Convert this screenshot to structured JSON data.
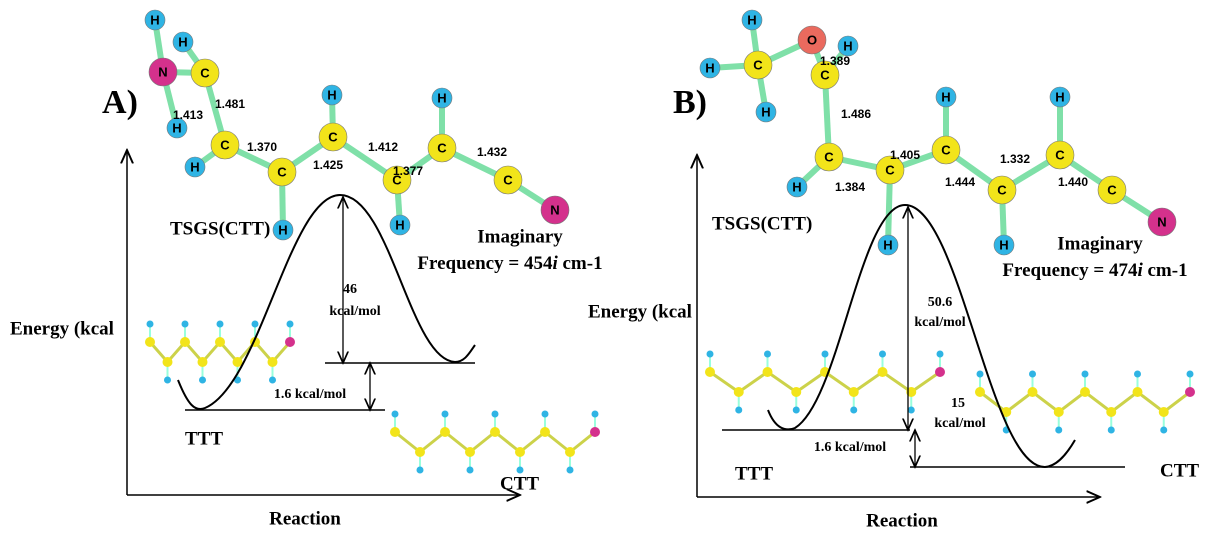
{
  "panels": [
    {
      "label": "A)",
      "y_axis": "Energy (kcal",
      "x_axis": "Reaction",
      "ts_label": "TSGS(CTT)",
      "imaginary": "Imaginary",
      "frequency": {
        "prefix": "Frequency = 454",
        "italic": "i",
        "suffix": " cm-1"
      },
      "barrier": [
        "46",
        "kcal/mol"
      ],
      "reaction_energy": "1.6 kcal/mol",
      "extra": [],
      "reactant": "TTT",
      "product": "CTT",
      "atoms": [
        "H",
        "H",
        "N",
        "C",
        "H",
        "C",
        "H",
        "C",
        "H",
        "C",
        "H",
        "C",
        "H",
        "C",
        "H",
        "C",
        "N"
      ],
      "bond_lengths": [
        "1.413",
        "1.481",
        "1.370",
        "1.425",
        "1.412",
        "1.377",
        "1.432"
      ]
    },
    {
      "label": "B)",
      "y_axis": "Energy (kcal",
      "x_axis": "Reaction",
      "ts_label": "TSGS(CTT)",
      "imaginary": "Imaginary",
      "frequency": {
        "prefix": "Frequency = 474",
        "italic": "i",
        "suffix": " cm-1"
      },
      "barrier": [
        "50.6",
        "kcal/mol"
      ],
      "reaction_energy": "1.6 kcal/mol",
      "extra": [
        "15",
        "kcal/mol"
      ],
      "reactant": "TTT",
      "product": "CTT",
      "atoms": [
        "H",
        "O",
        "H",
        "C",
        "H",
        "C",
        "H",
        "C",
        "H",
        "C",
        "H",
        "C",
        "H",
        "C",
        "H",
        "C",
        "H",
        "C",
        "N"
      ],
      "bond_lengths": [
        "1.389",
        "1.486",
        "1.405",
        "1.384",
        "1.444",
        "1.332",
        "1.440"
      ]
    }
  ]
}
